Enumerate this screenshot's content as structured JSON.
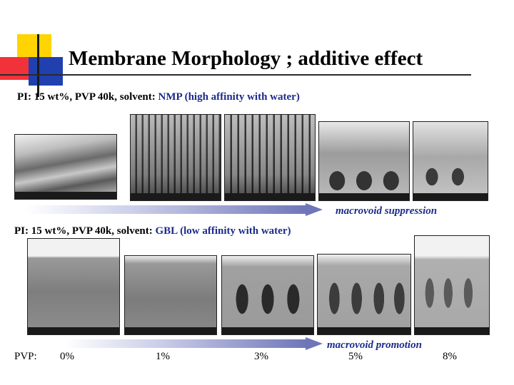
{
  "slide": {
    "title": "Membrane Morphology ;  additive effect",
    "caption_top": {
      "prefix": "PI: 15 wt%,  PVP 40k, solvent: ",
      "highlight": "NMP (high affinity with water)"
    },
    "caption_bottom": {
      "prefix": "PI: 15 wt%, PVP 40k, solvent: ",
      "highlight": "GBL (low affinity with water)"
    },
    "note_top": "macrovoid suppression",
    "note_bottom": "macrovoid promotion",
    "pvp_label": "PVP:",
    "pvp_levels": [
      "0%",
      "1%",
      "3%",
      "5%",
      "8%"
    ]
  },
  "colors": {
    "highlight": "#1c2b8a",
    "accent_yellow": "#ffd400",
    "accent_red": "#f2323a",
    "accent_blue": "#2040b0"
  }
}
